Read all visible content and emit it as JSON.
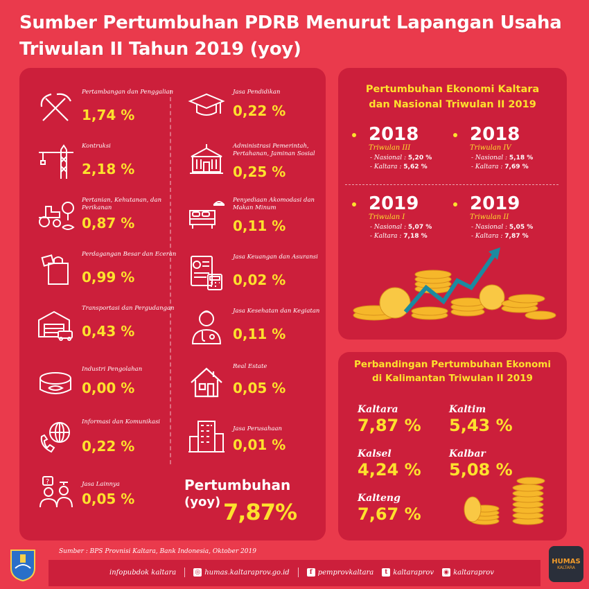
{
  "header": {
    "title_line1": "Sumber Pertumbuhan PDRB Menurut Lapangan Usaha",
    "title_line2": "Triwulan II Tahun 2019 (yoy)"
  },
  "sectors_left": [
    {
      "name": "Pertambangan dan Penggalian",
      "value": "1,74 %",
      "icon": "pickaxe-icon"
    },
    {
      "name": "Kontruksi",
      "value": "2,18 %",
      "icon": "crane-icon"
    },
    {
      "name": "Pertanian, Kehutanan, dan Perikanan",
      "value": "0,87 %",
      "icon": "tractor-icon"
    },
    {
      "name": "Perdagangan Besar dan Eceran",
      "value": "0,99 %",
      "icon": "shopping-bag-icon"
    },
    {
      "name": "Transportasi dan Pergudangan",
      "value": "0,43 %",
      "icon": "warehouse-icon"
    },
    {
      "name": "Industri Pengolahan",
      "value": "0,00 %",
      "icon": "can-icon"
    },
    {
      "name": "Informasi dan Komunikasi",
      "value": "0,22 %",
      "icon": "globe-phone-icon"
    },
    {
      "name": "Jasa Lainnya",
      "value": "0,05 %",
      "icon": "people-icon"
    }
  ],
  "sectors_right": [
    {
      "name": "Jasa Pendidikan",
      "value": "0,22 %",
      "icon": "graduation-cap-icon"
    },
    {
      "name": "Administrasi Pemerintah, Pertahanan, Jaminan Sosial",
      "value": "0,25 %",
      "icon": "government-building-icon"
    },
    {
      "name": "Penyediaan Akomodasi dan Makan Minum",
      "value": "0,11 %",
      "icon": "hotel-bed-icon"
    },
    {
      "name": "Jasa Keuangan dan Asuransi",
      "value": "0,02 %",
      "icon": "finance-icon"
    },
    {
      "name": "Jasa Kesehatan dan Kegiatan",
      "value": "0,11 %",
      "icon": "doctor-icon"
    },
    {
      "name": "Real Estate",
      "value": "0,05 %",
      "icon": "house-icon"
    },
    {
      "name": "Jasa Perusahaan",
      "value": "0,01 %",
      "icon": "office-building-icon"
    }
  ],
  "total": {
    "label": "Pertumbuhan",
    "yoy": "(yoy)",
    "value": "7,87%"
  },
  "growth_panel": {
    "title_line1": "Pertumbuhan Ekonomi Kaltara",
    "title_line2": "dan Nasional Triwulan II 2019",
    "periods": [
      {
        "year": "2018",
        "quarter": "Triwulan III",
        "nasional_label": "- Nasional :",
        "nasional": "5,20 %",
        "kaltara_label": "- Kaltara :",
        "kaltara": "5,62 %"
      },
      {
        "year": "2018",
        "quarter": "Triwulan IV",
        "nasional_label": "- Nasional :",
        "nasional": "5,18 %",
        "kaltara_label": "- Kaltara :",
        "kaltara": "7,69 %"
      },
      {
        "year": "2019",
        "quarter": "Triwulan I",
        "nasional_label": "- Nasional :",
        "nasional": "5,07 %",
        "kaltara_label": "- Kaltara :",
        "kaltara": "7,18 %"
      },
      {
        "year": "2019",
        "quarter": "Triwulan II",
        "nasional_label": "- Nasional :",
        "nasional": "5,05 %",
        "kaltara_label": "- Kaltara :",
        "kaltara": "7,87 %"
      }
    ]
  },
  "comparison_panel": {
    "title_line1": "Perbandingan Pertumbuhan Ekonomi",
    "title_line2": "di Kalimantan Triwulan II 2019",
    "provinces": [
      {
        "name": "Kaltara",
        "value": "7,87 %"
      },
      {
        "name": "Kaltim",
        "value": "5,43 %"
      },
      {
        "name": "Kalsel",
        "value": "4,24 %"
      },
      {
        "name": "Kalbar",
        "value": "5,08 %"
      },
      {
        "name": "Kalteng",
        "value": "7,67 %"
      }
    ]
  },
  "footer": {
    "source": "Sumber : BPS Provnisi Kaltara, Bank Indonesia, Oktober 2019",
    "links": [
      "infopubdok kaltara",
      "humas.kaltaraprov.go.id",
      "pemprovkaltara",
      "kaltaraprov",
      "kaltaraprov"
    ],
    "logo_right_text": "HUMAS",
    "logo_right_sub": "KALTARA"
  },
  "colors": {
    "background": "#ea3a4c",
    "panel": "#cc1f3b",
    "accent": "#fde12d",
    "coin": "#f6b72a"
  }
}
